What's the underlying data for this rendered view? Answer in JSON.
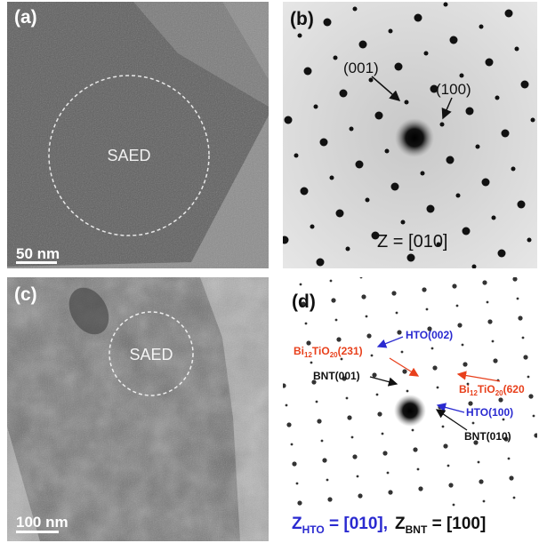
{
  "panels": [
    {
      "label": "(a)",
      "circle_label": "SAED",
      "scale_bar": "50 nm"
    },
    {
      "label": "(b)",
      "spots": [
        "(001)",
        "(100)"
      ],
      "zone_axis": "Z = [010]"
    },
    {
      "label": "(c)",
      "circle_label": "SAED",
      "scale_bar": "100 nm"
    },
    {
      "label": "(d)",
      "annotations": [
        {
          "bi": "Bi",
          "bi_sub": "12",
          "ti": "TiO",
          "ti_sub": "20",
          "plane": "(231)"
        },
        "HTO(002)",
        "BNT(001)",
        {
          "bi": "Bi",
          "bi_sub": "12",
          "ti": "TiO",
          "ti_sub": "20",
          "plane": "(620"
        },
        "HTO(100)",
        "BNT(010)"
      ],
      "zone_axes": [
        {
          "z": "Z",
          "sub": "HTO",
          "rest": " = [010],"
        },
        {
          "z": "Z",
          "sub": "BNT",
          "rest": " = [100]"
        }
      ]
    }
  ]
}
